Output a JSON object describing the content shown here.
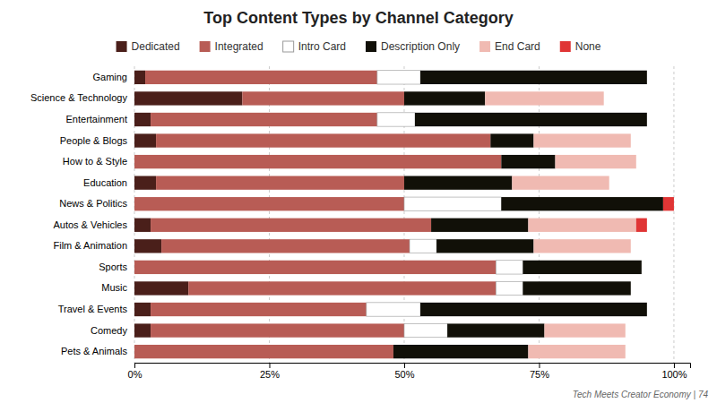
{
  "chart_data": {
    "type": "bar",
    "orientation": "horizontal",
    "stacked": true,
    "title": "Top Content Types by Channel Category",
    "categories": [
      "Gaming",
      "Science & Technology",
      "Entertainment",
      "People & Blogs",
      "How to & Style",
      "Education",
      "News & Politics",
      "Autos & Vehicles",
      "Film & Animation",
      "Sports",
      "Music",
      "Travel & Events",
      "Comedy",
      "Pets & Animals"
    ],
    "series": [
      {
        "name": "Dedicated",
        "color": "#4a1f1a",
        "values": [
          2,
          20,
          3,
          4,
          0,
          4,
          0,
          3,
          5,
          0,
          10,
          3,
          3,
          0
        ]
      },
      {
        "name": "Integrated",
        "color": "#b85c55",
        "values": [
          43,
          30,
          42,
          62,
          68,
          46,
          50,
          52,
          46,
          67,
          57,
          40,
          47,
          48
        ]
      },
      {
        "name": "Intro Card",
        "color": "#ffffff",
        "values": [
          8,
          0,
          7,
          0,
          0,
          0,
          18,
          0,
          5,
          5,
          5,
          10,
          8,
          0
        ]
      },
      {
        "name": "Description Only",
        "color": "#111008",
        "values": [
          42,
          15,
          43,
          8,
          10,
          20,
          30,
          18,
          18,
          22,
          20,
          42,
          18,
          25
        ]
      },
      {
        "name": "End Card",
        "color": "#f0bab2",
        "values": [
          0,
          22,
          0,
          18,
          15,
          18,
          0,
          20,
          18,
          0,
          0,
          0,
          15,
          18
        ]
      },
      {
        "name": "None",
        "color": "#e03535",
        "values": [
          0,
          0,
          0,
          0,
          0,
          0,
          2,
          2,
          0,
          0,
          0,
          0,
          0,
          0
        ]
      }
    ],
    "xlim": [
      0,
      103
    ],
    "xticks": [
      {
        "value": 0,
        "label": "0%"
      },
      {
        "value": 25,
        "label": "25%"
      },
      {
        "value": 50,
        "label": "50%"
      },
      {
        "value": 75,
        "label": "75%"
      },
      {
        "value": 100,
        "label": "100%"
      }
    ],
    "grid": true,
    "legend": "top",
    "annotations": [
      "Tech Meets Creator Economy | 74"
    ]
  }
}
